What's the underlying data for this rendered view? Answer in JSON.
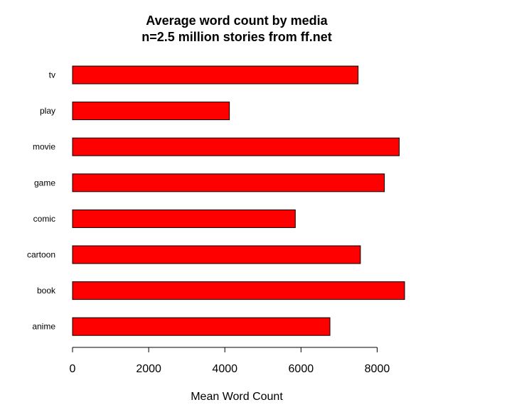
{
  "chart_data": {
    "type": "bar",
    "orientation": "horizontal",
    "title": "Average word count by media",
    "subtitle": "n=2.5 million stories from ff.net",
    "xlabel": "Mean Word Count",
    "ylabel": "",
    "categories": [
      "tv",
      "play",
      "movie",
      "game",
      "comic",
      "cartoon",
      "book",
      "anime"
    ],
    "values": [
      7500,
      4120,
      8580,
      8190,
      5850,
      7560,
      8720,
      6760
    ],
    "xlim": [
      0,
      8720
    ],
    "xticks": [
      0,
      2000,
      4000,
      6000,
      8000
    ],
    "xtick_labels": [
      "0",
      "2000",
      "4000",
      "6000",
      "8000"
    ],
    "grid": false,
    "bar_color": "#ff0000",
    "bar_border_color": "#000000"
  }
}
